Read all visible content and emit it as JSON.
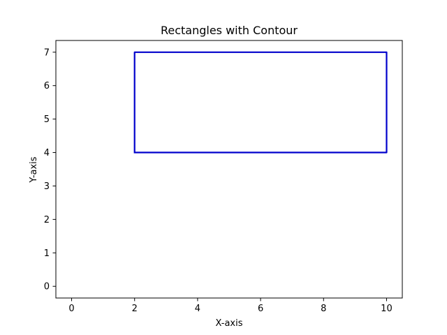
{
  "chart_data": {
    "type": "line",
    "title": "Rectangles with Contour",
    "xlabel": "X-axis",
    "ylabel": "Y-axis",
    "xlim": [
      -0.5,
      10.5
    ],
    "ylim": [
      -0.35,
      7.35
    ],
    "xticks": [
      0,
      2,
      4,
      6,
      8,
      10
    ],
    "yticks": [
      0,
      1,
      2,
      3,
      4,
      5,
      6,
      7
    ],
    "grid": false,
    "series": [
      {
        "color": "#0000cc",
        "x": [
          2,
          10,
          10,
          2,
          2
        ],
        "y": [
          4,
          4,
          7,
          7,
          4
        ]
      }
    ]
  }
}
